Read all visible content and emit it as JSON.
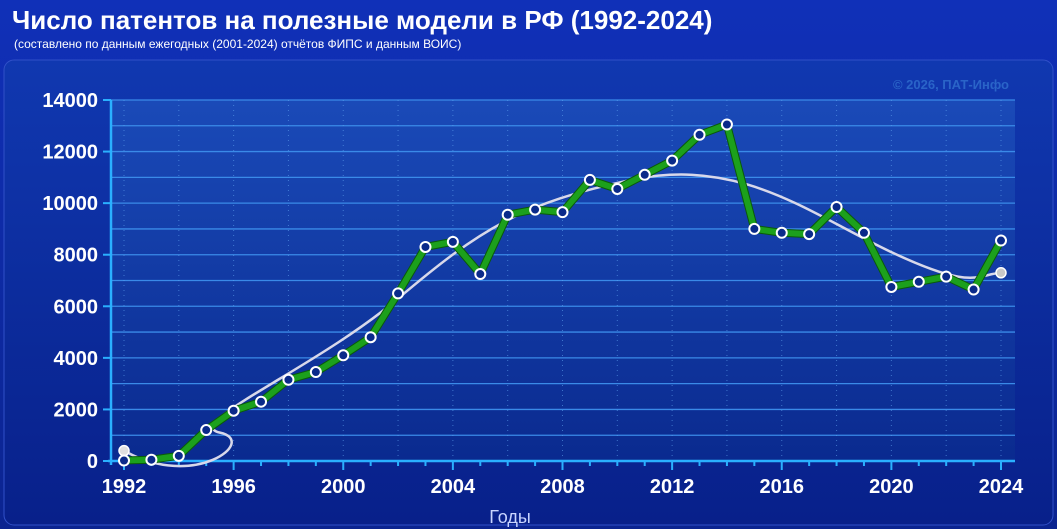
{
  "title": "Число патентов на полезные модели в РФ (1992-2024)",
  "subtitle": "(составлено по данным ежегодных (2001-2024) отчётов ФИПС и данным ВОИС)",
  "copyright": "© 2026, ПАТ-Инфо",
  "colors": {
    "background": "#0b2490",
    "plot_top": "#1a4ab8",
    "plot_bottom": "#0a2a8f",
    "series": "#1ca01c",
    "trend": "#d8d8ea",
    "axis": "#2ab0ff"
  },
  "chart_data": {
    "type": "line",
    "title": "Число патентов на полезные модели в РФ (1992-2024)",
    "xlabel": "Годы",
    "ylabel": "",
    "xlim": [
      1992,
      2024
    ],
    "ylim": [
      0,
      14000
    ],
    "grid": true,
    "x_ticks": [
      "1992",
      "1996",
      "2000",
      "2004",
      "2008",
      "2012",
      "2016",
      "2020",
      "2024"
    ],
    "y_ticks": [
      "0",
      "2000",
      "4000",
      "6000",
      "8000",
      "10000",
      "12000",
      "14000"
    ],
    "x": [
      1992,
      1993,
      1994,
      1995,
      1996,
      1997,
      1998,
      1999,
      2000,
      2001,
      2002,
      2003,
      2004,
      2005,
      2006,
      2007,
      2008,
      2009,
      2010,
      2011,
      2012,
      2013,
      2014,
      2015,
      2016,
      2017,
      2018,
      2019,
      2020,
      2021,
      2022,
      2023,
      2024
    ],
    "series": [
      {
        "values": [
          20,
          50,
          200,
          1200,
          1950,
          2300,
          3150,
          3450,
          4100,
          4800,
          6500,
          8300,
          8500,
          7250,
          9550,
          9750,
          9650,
          10900,
          10550,
          11100,
          11650,
          12650,
          13050,
          9000,
          8850,
          8800,
          9850,
          8850,
          6750,
          6950,
          7150,
          6650,
          8550
        ]
      }
    ],
    "trend": {
      "start": [
        1992,
        400
      ],
      "end": [
        2024,
        7300
      ]
    }
  }
}
